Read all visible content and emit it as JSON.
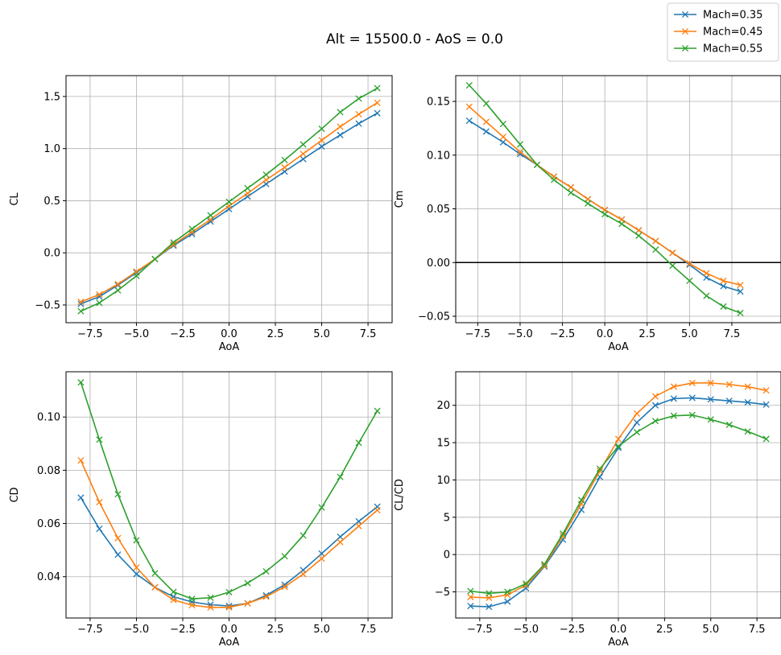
{
  "figure": {
    "title": "Alt = 15500.0 - AoS = 0.0"
  },
  "colors": {
    "s0": "#1f77b4",
    "s1": "#ff7f0e",
    "s2": "#2ca02c",
    "grid": "#b0b0b0",
    "zero_line": "#000000"
  },
  "legend": {
    "placement": "top-right",
    "entries": [
      "Mach=0.35",
      "Mach=0.45",
      "Mach=0.55"
    ]
  },
  "chart_data": [
    {
      "type": "line",
      "xlabel": "AoA",
      "ylabel": "CL",
      "xlim": [
        -8.8,
        8.8
      ],
      "ylim": [
        -0.67,
        1.7
      ],
      "xticks": [
        -7.5,
        -5.0,
        -2.5,
        0.0,
        2.5,
        5.0,
        7.5
      ],
      "xtick_labels": [
        "−7.5",
        "−5.0",
        "−2.5",
        "0.0",
        "2.5",
        "5.0",
        "7.5"
      ],
      "yticks": [
        -0.5,
        0.0,
        0.5,
        1.0,
        1.5
      ],
      "ytick_labels": [
        "−0.5",
        "0.0",
        "0.5",
        "1.0",
        "1.5"
      ],
      "grid": true,
      "zero_line": false,
      "x": [
        -8,
        -7,
        -6,
        -5,
        -4,
        -3,
        -2,
        -1,
        0,
        1,
        2,
        3,
        4,
        5,
        6,
        7,
        8
      ],
      "series": [
        {
          "name": "Mach=0.35",
          "values": [
            -0.49,
            -0.42,
            -0.31,
            -0.19,
            -0.06,
            0.07,
            0.18,
            0.3,
            0.42,
            0.54,
            0.66,
            0.78,
            0.9,
            1.02,
            1.13,
            1.24,
            1.34
          ]
        },
        {
          "name": "Mach=0.45",
          "values": [
            -0.47,
            -0.4,
            -0.3,
            -0.18,
            -0.06,
            0.08,
            0.2,
            0.32,
            0.45,
            0.57,
            0.7,
            0.82,
            0.95,
            1.08,
            1.21,
            1.33,
            1.44
          ]
        },
        {
          "name": "Mach=0.55",
          "values": [
            -0.56,
            -0.48,
            -0.36,
            -0.22,
            -0.06,
            0.1,
            0.23,
            0.36,
            0.49,
            0.62,
            0.75,
            0.89,
            1.04,
            1.19,
            1.35,
            1.48,
            1.58
          ]
        }
      ]
    },
    {
      "type": "line",
      "xlabel": "AoA",
      "ylabel": "Cm",
      "xlim": [
        -8.8,
        10.4
      ],
      "ylim": [
        -0.056,
        0.174
      ],
      "xticks": [
        -7.5,
        -5.0,
        -2.5,
        0.0,
        2.5,
        5.0,
        7.5
      ],
      "xtick_labels": [
        "−7.5",
        "−5.0",
        "−2.5",
        "0.0",
        "2.5",
        "5.0",
        "7.5"
      ],
      "yticks": [
        -0.05,
        0.0,
        0.05,
        0.1,
        0.15
      ],
      "ytick_labels": [
        "−0.05",
        "0.00",
        "0.05",
        "0.10",
        "0.15"
      ],
      "grid": true,
      "zero_line": true,
      "x": [
        -8,
        -7,
        -6,
        -5,
        -4,
        -3,
        -2,
        -1,
        0,
        1,
        2,
        3,
        4,
        5,
        6,
        7,
        8
      ],
      "series": [
        {
          "name": "Mach=0.35",
          "values": [
            0.132,
            0.122,
            0.112,
            0.101,
            0.091,
            0.08,
            0.07,
            0.059,
            0.049,
            0.04,
            0.03,
            0.02,
            0.009,
            -0.002,
            -0.014,
            -0.022,
            -0.027
          ]
        },
        {
          "name": "Mach=0.45",
          "values": [
            0.145,
            0.131,
            0.117,
            0.103,
            0.091,
            0.08,
            0.07,
            0.059,
            0.049,
            0.04,
            0.03,
            0.02,
            0.009,
            -0.001,
            -0.01,
            -0.017,
            -0.021
          ]
        },
        {
          "name": "Mach=0.55",
          "values": [
            0.165,
            0.148,
            0.129,
            0.11,
            0.091,
            0.077,
            0.065,
            0.055,
            0.045,
            0.036,
            0.025,
            0.012,
            -0.003,
            -0.017,
            -0.031,
            -0.041,
            -0.047
          ]
        }
      ]
    },
    {
      "type": "line",
      "xlabel": "AoA",
      "ylabel": "CD",
      "xlim": [
        -8.8,
        8.8
      ],
      "ylim": [
        0.0245,
        0.117
      ],
      "xticks": [
        -7.5,
        -5.0,
        -2.5,
        0.0,
        2.5,
        5.0,
        7.5
      ],
      "xtick_labels": [
        "−7.5",
        "−5.0",
        "−2.5",
        "0.0",
        "2.5",
        "5.0",
        "7.5"
      ],
      "yticks": [
        0.04,
        0.06,
        0.08,
        0.1
      ],
      "ytick_labels": [
        "0.04",
        "0.06",
        "0.08",
        "0.10"
      ],
      "grid": true,
      "zero_line": false,
      "x": [
        -8,
        -7,
        -6,
        -5,
        -4,
        -3,
        -2,
        -1,
        0,
        1,
        2,
        3,
        4,
        5,
        6,
        7,
        8
      ],
      "series": [
        {
          "name": "Mach=0.35",
          "values": [
            0.0697,
            0.058,
            0.0483,
            0.041,
            0.036,
            0.0325,
            0.0305,
            0.0295,
            0.029,
            0.03,
            0.033,
            0.037,
            0.0425,
            0.0487,
            0.055,
            0.0608,
            0.0663
          ]
        },
        {
          "name": "Mach=0.45",
          "values": [
            0.0837,
            0.068,
            0.0545,
            0.0435,
            0.036,
            0.0313,
            0.0293,
            0.0285,
            0.0285,
            0.03,
            0.0325,
            0.0362,
            0.041,
            0.0468,
            0.053,
            0.059,
            0.065
          ]
        },
        {
          "name": "Mach=0.55",
          "values": [
            0.113,
            0.0915,
            0.071,
            0.0537,
            0.0413,
            0.0343,
            0.0317,
            0.0321,
            0.0342,
            0.0376,
            0.042,
            0.0477,
            0.0555,
            0.066,
            0.0775,
            0.0903,
            0.1023
          ]
        }
      ]
    },
    {
      "type": "line",
      "xlabel": "AoA",
      "ylabel": "CL/CD",
      "xlim": [
        -8.8,
        8.8
      ],
      "ylim": [
        -8.5,
        24.5
      ],
      "xticks": [
        -7.5,
        -5.0,
        -2.5,
        0.0,
        2.5,
        5.0,
        7.5
      ],
      "xtick_labels": [
        "−7.5",
        "−5.0",
        "−2.5",
        "0.0",
        "2.5",
        "5.0",
        "7.5"
      ],
      "yticks": [
        -5,
        0,
        5,
        10,
        15,
        20
      ],
      "ytick_labels": [
        "−5",
        "0",
        "5",
        "10",
        "15",
        "20"
      ],
      "grid": true,
      "zero_line": false,
      "x": [
        -8,
        -7,
        -6,
        -5,
        -4,
        -3,
        -2,
        -1,
        0,
        1,
        2,
        3,
        4,
        5,
        6,
        7,
        8
      ],
      "series": [
        {
          "name": "Mach=0.35",
          "values": [
            -6.9,
            -7.0,
            -6.3,
            -4.5,
            -1.6,
            2.0,
            6.0,
            10.4,
            14.3,
            17.7,
            20.0,
            20.9,
            21.0,
            20.8,
            20.6,
            20.4,
            20.1
          ]
        },
        {
          "name": "Mach=0.45",
          "values": [
            -5.7,
            -5.8,
            -5.4,
            -4.1,
            -1.5,
            2.5,
            6.8,
            11.2,
            15.5,
            18.9,
            21.2,
            22.5,
            23.0,
            23.0,
            22.8,
            22.5,
            22.0
          ]
        },
        {
          "name": "Mach=0.55",
          "values": [
            -4.9,
            -5.2,
            -5.0,
            -3.9,
            -1.3,
            2.8,
            7.3,
            11.5,
            14.5,
            16.4,
            17.9,
            18.6,
            18.7,
            18.1,
            17.4,
            16.5,
            15.5
          ]
        }
      ]
    }
  ]
}
